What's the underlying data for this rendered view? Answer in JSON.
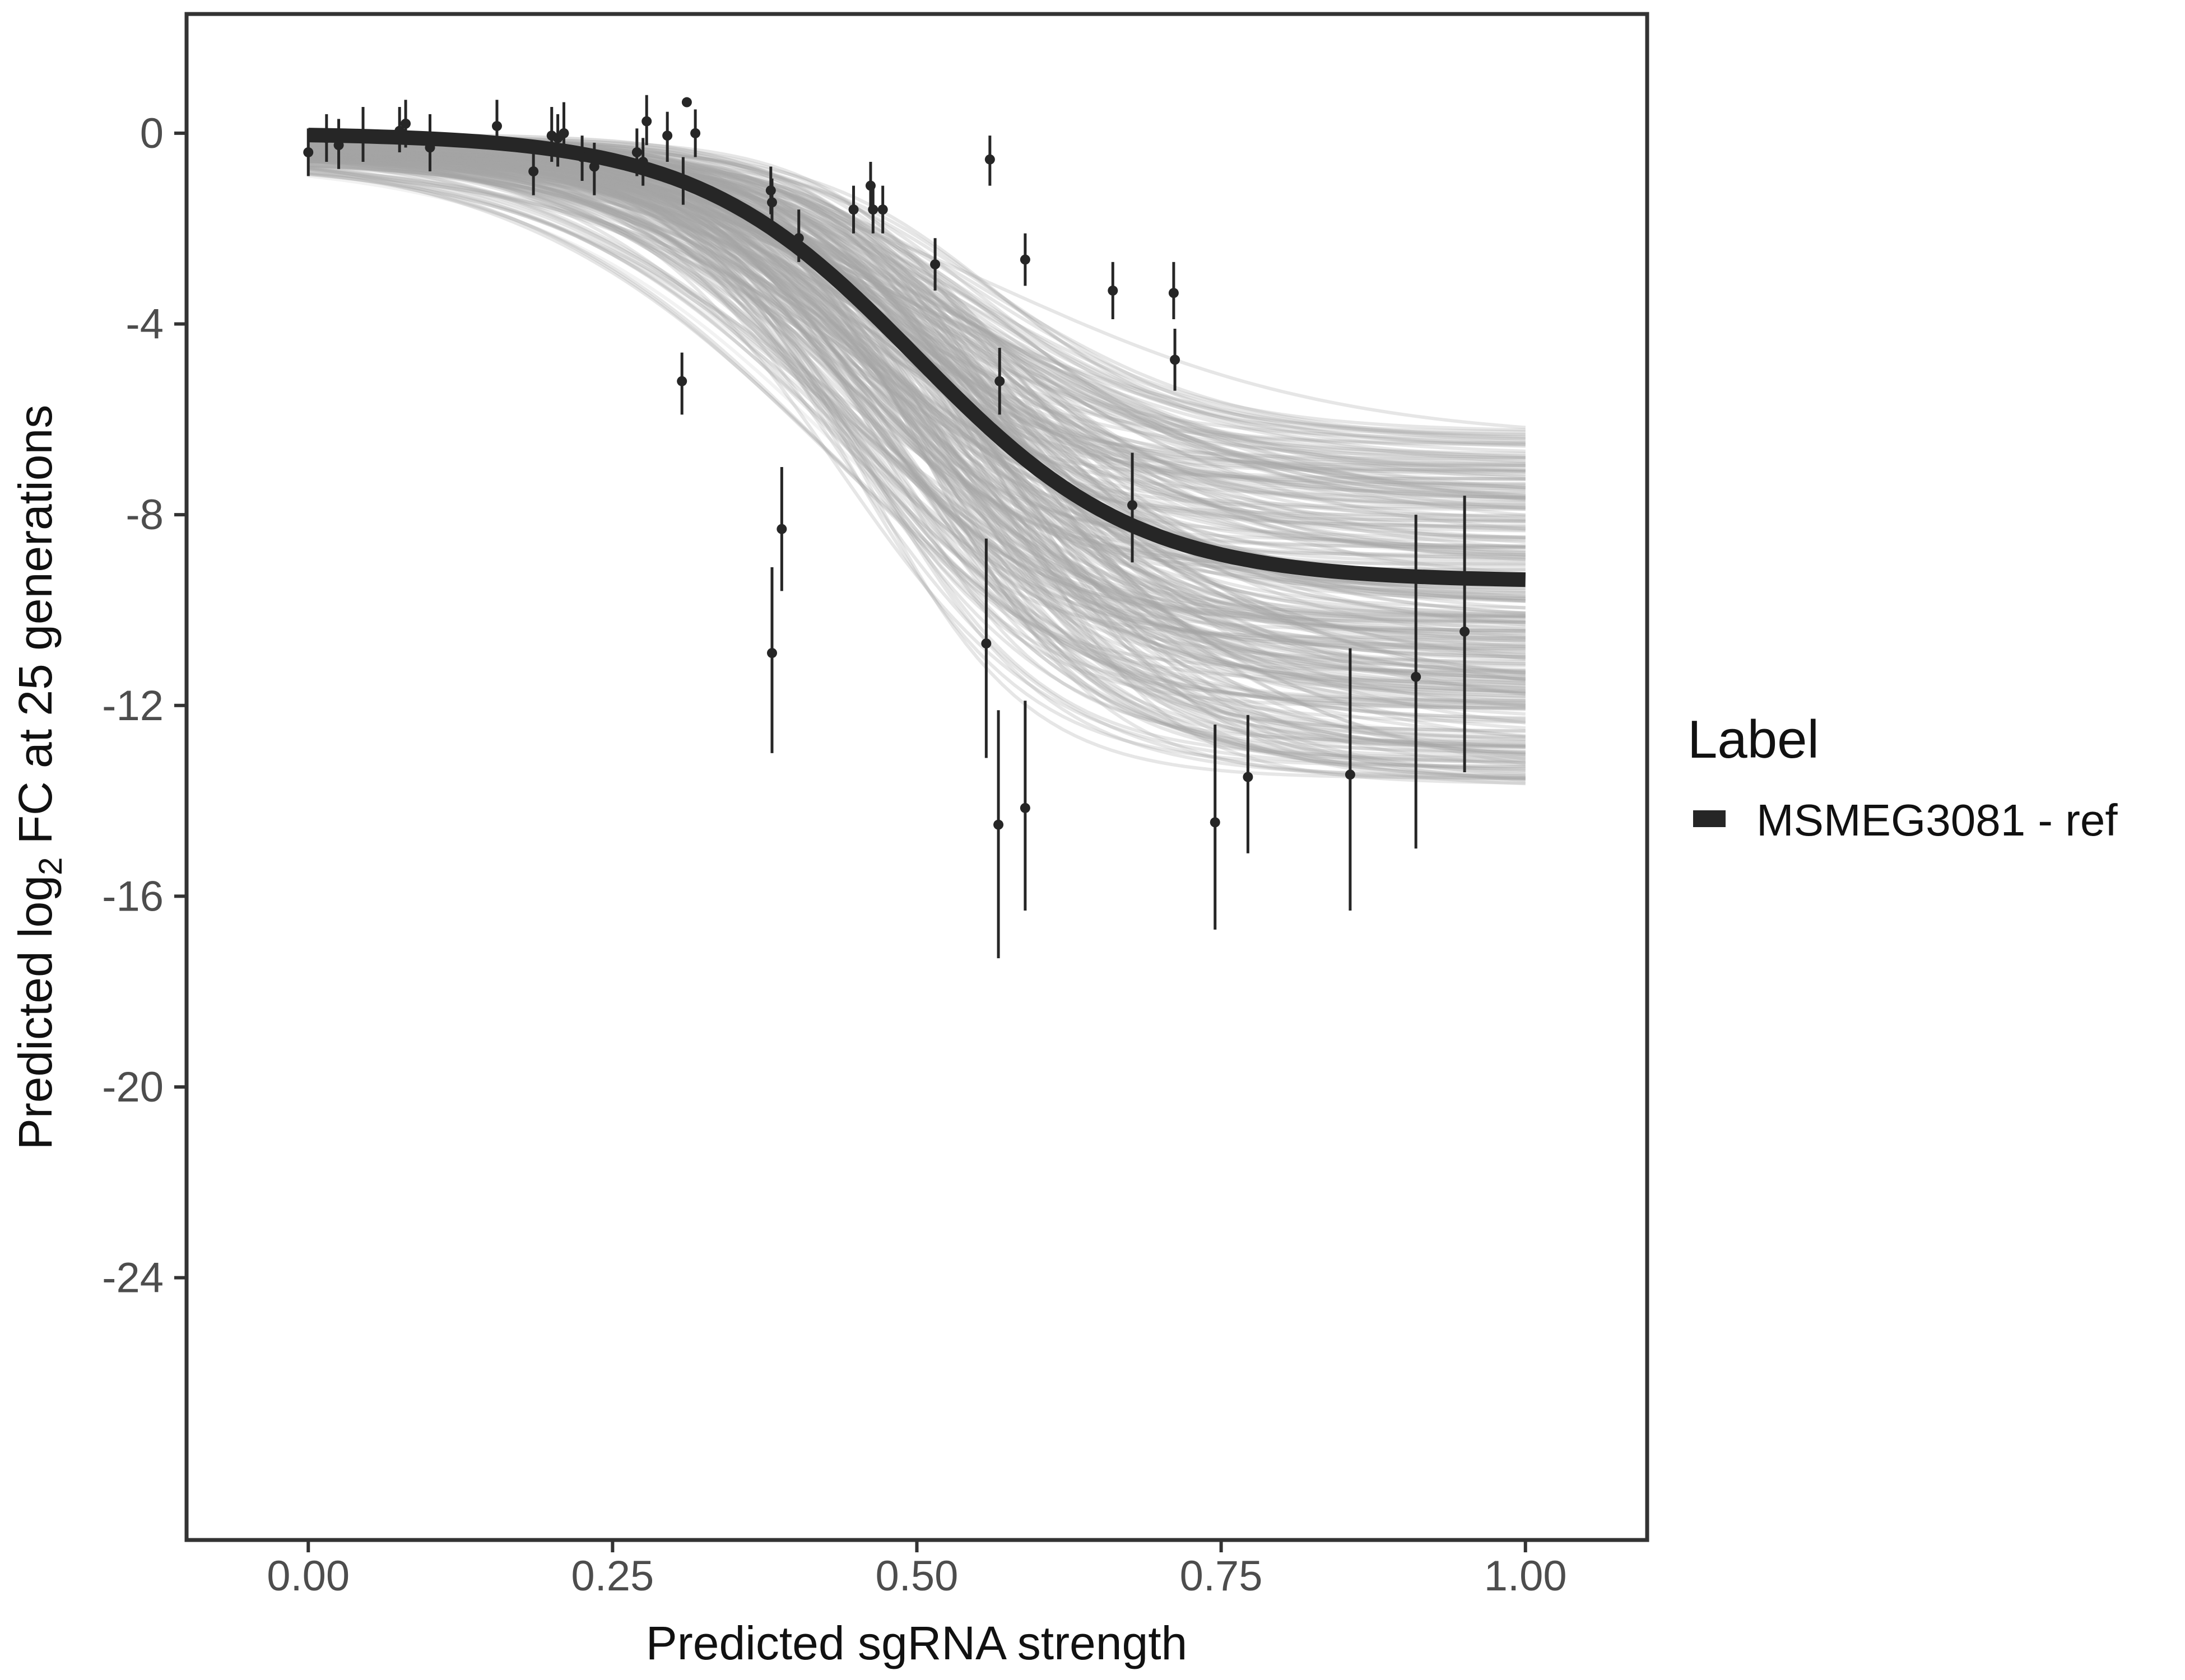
{
  "chart_data": {
    "type": "scatter",
    "title": "",
    "xlabel": "Predicted sgRNA strength",
    "ylabel_prefix": "Predicted  log",
    "ylabel_sub": "2",
    "ylabel_suffix": " FC at 25 generations",
    "xlim": [
      -0.1,
      1.1
    ],
    "ylim": [
      -29.5,
      2.5
    ],
    "x_ticks": [
      0,
      0.25,
      0.5,
      0.75,
      1
    ],
    "x_tick_labels": [
      "0.00",
      "0.25",
      "0.50",
      "0.75",
      "1.00"
    ],
    "y_ticks": [
      0,
      -4,
      -8,
      -12,
      -16,
      -20,
      -24
    ],
    "y_tick_labels": [
      "0",
      "-4",
      "-8",
      "-12",
      "-16",
      "-20",
      "-24"
    ],
    "grid": false,
    "legend": {
      "title": "Label",
      "position": "right",
      "entries": [
        {
          "label": "MSMEG3081 - ref",
          "color": "#262626"
        }
      ]
    },
    "fit_curve": {
      "label": "MSMEG3081 - ref",
      "model": "logistic",
      "upper": 0.0,
      "lower": -9.4,
      "midpoint": 0.5,
      "slope": 11,
      "color": "#262626"
    },
    "posterior_band": {
      "color": "#a6a6a6",
      "n_draws": 300,
      "upper_range": [
        -0.6,
        0.0
      ],
      "lower_range": [
        -13.8,
        -6.2
      ],
      "midpoint_range": [
        0.42,
        0.58
      ],
      "slope_range": [
        7,
        15
      ]
    },
    "points": [
      {
        "x": 0.0,
        "y": -0.4,
        "lo": -0.9,
        "hi": 0.1
      },
      {
        "x": 0.015,
        "y": -0.1,
        "lo": -0.6,
        "hi": 0.4
      },
      {
        "x": 0.025,
        "y": -0.25,
        "lo": -0.75,
        "hi": 0.3
      },
      {
        "x": 0.045,
        "y": -0.05,
        "lo": -0.6,
        "hi": 0.55
      },
      {
        "x": 0.075,
        "y": 0.05,
        "lo": -0.4,
        "hi": 0.55
      },
      {
        "x": 0.08,
        "y": 0.2,
        "lo": -0.3,
        "hi": 0.7
      },
      {
        "x": 0.1,
        "y": -0.3,
        "lo": -0.8,
        "hi": 0.4
      },
      {
        "x": 0.155,
        "y": 0.15,
        "lo": -0.3,
        "hi": 0.7
      },
      {
        "x": 0.185,
        "y": -0.8,
        "lo": -1.3,
        "hi": -0.2
      },
      {
        "x": 0.2,
        "y": -0.05,
        "lo": -0.6,
        "hi": 0.55
      },
      {
        "x": 0.205,
        "y": -0.1,
        "lo": -0.7,
        "hi": 0.4
      },
      {
        "x": 0.21,
        "y": 0.0,
        "lo": -0.5,
        "hi": 0.65
      },
      {
        "x": 0.225,
        "y": -0.5,
        "lo": -1.0,
        "hi": -0.05
      },
      {
        "x": 0.235,
        "y": -0.7,
        "lo": -1.3,
        "hi": -0.2
      },
      {
        "x": 0.27,
        "y": -0.4,
        "lo": -0.9,
        "hi": 0.1
      },
      {
        "x": 0.275,
        "y": -0.6,
        "lo": -1.1,
        "hi": -0.1
      },
      {
        "x": 0.278,
        "y": 0.25,
        "lo": -0.25,
        "hi": 0.8
      },
      {
        "x": 0.295,
        "y": -0.05,
        "lo": -0.6,
        "hi": 0.45
      },
      {
        "x": 0.307,
        "y": -5.2,
        "lo": -5.9,
        "hi": -4.6
      },
      {
        "x": 0.308,
        "y": -1.0,
        "lo": -1.5,
        "hi": -0.5
      },
      {
        "x": 0.311,
        "y": 0.65,
        "lo": 0.65,
        "hi": 0.65
      },
      {
        "x": 0.318,
        "y": 0.0,
        "lo": -0.5,
        "hi": 0.5
      },
      {
        "x": 0.38,
        "y": -1.2,
        "lo": -1.7,
        "hi": -0.7
      },
      {
        "x": 0.381,
        "y": -1.45,
        "lo": -1.95,
        "hi": -0.95
      },
      {
        "x": 0.381,
        "y": -10.9,
        "lo": -13.0,
        "hi": -9.1
      },
      {
        "x": 0.389,
        "y": -8.3,
        "lo": -9.6,
        "hi": -7.0
      },
      {
        "x": 0.403,
        "y": -2.2,
        "lo": -2.7,
        "hi": -1.6
      },
      {
        "x": 0.448,
        "y": -1.6,
        "lo": -2.1,
        "hi": -1.1
      },
      {
        "x": 0.462,
        "y": -1.1,
        "lo": -1.6,
        "hi": -0.6
      },
      {
        "x": 0.464,
        "y": -1.6,
        "lo": -2.1,
        "hi": -1.1
      },
      {
        "x": 0.472,
        "y": -1.6,
        "lo": -2.1,
        "hi": -1.1
      },
      {
        "x": 0.515,
        "y": -2.75,
        "lo": -3.3,
        "hi": -2.2
      },
      {
        "x": 0.557,
        "y": -10.7,
        "lo": -13.1,
        "hi": -8.5
      },
      {
        "x": 0.56,
        "y": -0.55,
        "lo": -1.1,
        "hi": -0.05
      },
      {
        "x": 0.567,
        "y": -14.5,
        "lo": -17.3,
        "hi": -12.1
      },
      {
        "x": 0.568,
        "y": -5.2,
        "lo": -5.9,
        "hi": -4.5
      },
      {
        "x": 0.589,
        "y": -2.65,
        "lo": -3.2,
        "hi": -2.1
      },
      {
        "x": 0.589,
        "y": -14.15,
        "lo": -16.3,
        "hi": -11.9
      },
      {
        "x": 0.661,
        "y": -3.3,
        "lo": -3.9,
        "hi": -2.7
      },
      {
        "x": 0.677,
        "y": -7.8,
        "lo": -9.0,
        "hi": -6.7
      },
      {
        "x": 0.711,
        "y": -3.35,
        "lo": -3.9,
        "hi": -2.7
      },
      {
        "x": 0.712,
        "y": -4.75,
        "lo": -5.4,
        "hi": -4.1
      },
      {
        "x": 0.745,
        "y": -14.45,
        "lo": -16.7,
        "hi": -12.4
      },
      {
        "x": 0.772,
        "y": -13.5,
        "lo": -15.1,
        "hi": -12.2
      },
      {
        "x": 0.856,
        "y": -13.45,
        "lo": -16.3,
        "hi": -10.8
      },
      {
        "x": 0.91,
        "y": -11.4,
        "lo": -15.0,
        "hi": -8.0
      },
      {
        "x": 0.95,
        "y": -10.45,
        "lo": -13.4,
        "hi": -7.6
      }
    ],
    "colors": {
      "points": "#262626",
      "axis": "#333333"
    }
  }
}
